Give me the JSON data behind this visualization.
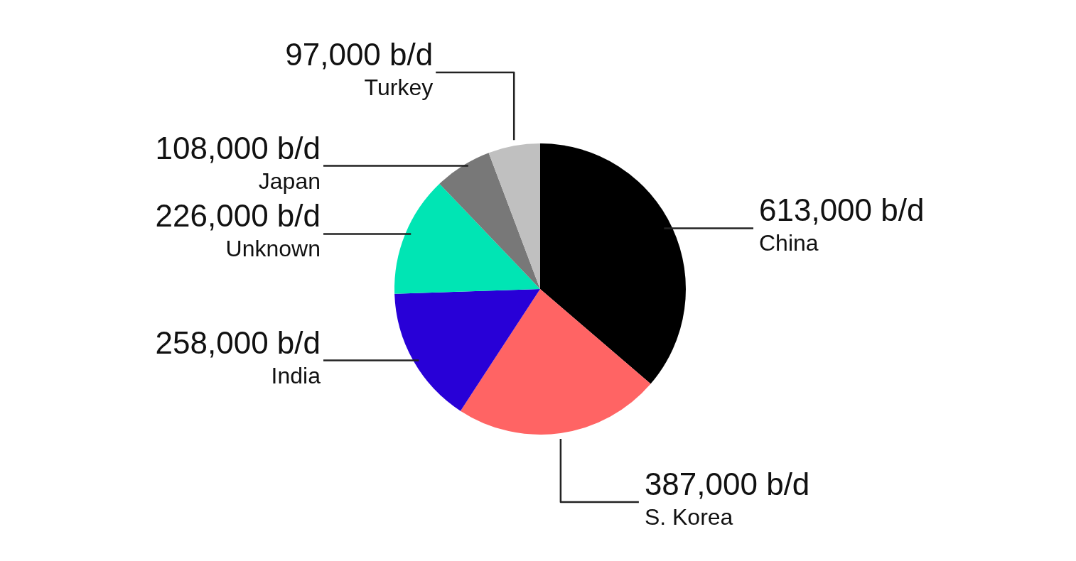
{
  "chart_data": {
    "type": "pie",
    "categories": [
      "China",
      "S. Korea",
      "India",
      "Unknown",
      "Japan",
      "Turkey"
    ],
    "values": [
      613000,
      387000,
      258000,
      226000,
      108000,
      97000
    ],
    "colors": [
      "#000000",
      "#ff6464",
      "#2800d7",
      "#00e5b4",
      "#787878",
      "#c0c0c0"
    ],
    "value_labels": [
      "613,000 b/d",
      "387,000 b/d",
      "258,000 b/d",
      "226,000 b/d",
      "108,000 b/d",
      "97,000 b/d"
    ]
  }
}
